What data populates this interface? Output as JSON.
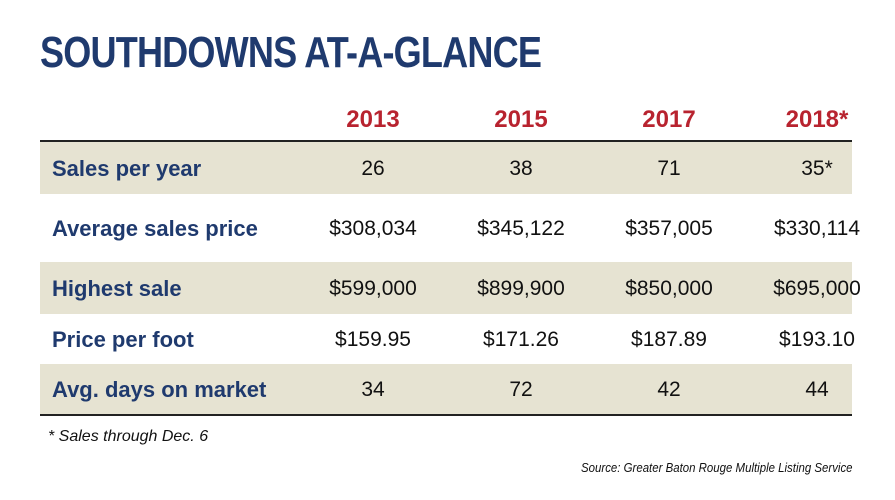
{
  "title": "SOUTHDOWNS AT-A-GLANCE",
  "chart_data": {
    "type": "table",
    "columns": [
      "2013",
      "2015",
      "2017",
      "2018*"
    ],
    "rows": [
      {
        "label": "Sales per year",
        "values": [
          "26",
          "38",
          "71",
          "35*"
        ]
      },
      {
        "label": "Average sales price",
        "values": [
          "$308,034",
          "$345,122",
          "$357,005",
          "$330,114"
        ]
      },
      {
        "label": "Highest sale",
        "values": [
          "$599,000",
          "$899,900",
          "$850,000",
          "$695,000"
        ]
      },
      {
        "label": "Price per foot",
        "values": [
          "$159.95",
          "$171.26",
          "$187.89",
          "$193.10"
        ]
      },
      {
        "label": "Avg. days on market",
        "values": [
          "34",
          "72",
          "42",
          "44"
        ]
      }
    ]
  },
  "footnote": "* Sales through Dec. 6",
  "source": "Source: Greater Baton Rouge Multiple Listing Service",
  "colors": {
    "title": "#1f3a6e",
    "year_header": "#b8232f",
    "row_label": "#1f3a6e",
    "shaded_row": "#e6e3d2"
  }
}
